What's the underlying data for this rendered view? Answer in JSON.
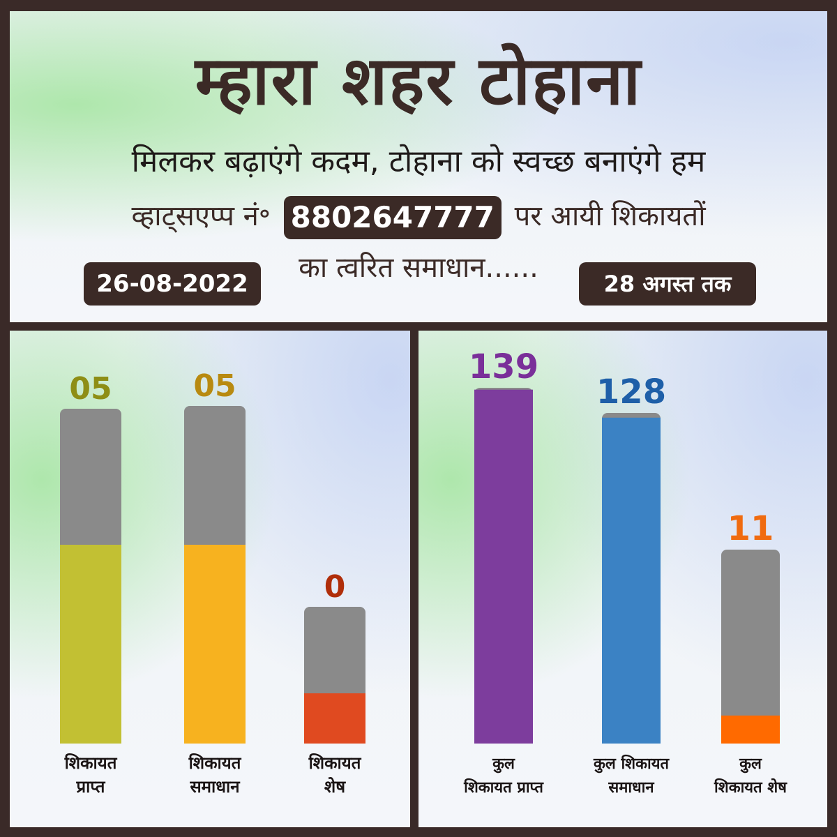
{
  "header": {
    "title": "म्हारा शहर टोहाना",
    "subtitle": "मिलकर बढ़ाएंगे कदम, टोहाना को स्वच्छ बनाएंगे हम",
    "whatsapp_prefix": "व्हाट्सएप्प नं॰",
    "phone": "8802647777",
    "whatsapp_suffix": "पर आयी शिकायतों",
    "line4": "का त्वरित समाधान......",
    "date": "26-08-2022",
    "upto": "28 अगस्त तक"
  },
  "colors": {
    "frame": "#3a2a28",
    "empty_bar": "#8a8a8a",
    "daily_received": "#c2c033",
    "daily_resolved": "#f7b21f",
    "daily_pending": "#e04a20",
    "total_received": "#7d3d9d",
    "total_resolved": "#3b82c4",
    "total_pending": "#ff6a00"
  },
  "chart_data": [
    {
      "type": "bar",
      "categories": [
        "शिकायत प्राप्त",
        "शिकायत समाधान",
        "शिकायत शेष"
      ],
      "category_lines": [
        [
          "शिकायत",
          "प्राप्त"
        ],
        [
          "शिकायत",
          "समाधान"
        ],
        [
          "शिकायत",
          "शेष"
        ]
      ],
      "value_labels": [
        "05",
        "05",
        "0"
      ],
      "values": [
        5,
        5,
        0
      ],
      "value_label_colors": [
        "#8e8e15",
        "#b88a10",
        "#b02e0a"
      ],
      "bar_colors": [
        "#c2c033",
        "#f7b21f",
        "#e04a20"
      ]
    },
    {
      "type": "bar",
      "categories": [
        "कुल शिकायत प्राप्त",
        "कुल शिकायत समाधान",
        "कुल शिकायत शेष"
      ],
      "category_lines": [
        [
          "कुल",
          "शिकायत प्राप्त"
        ],
        [
          "कुल शिकायत",
          "समाधान"
        ],
        [
          "कुल",
          "शिकायत शेष"
        ]
      ],
      "value_labels": [
        "139",
        "128",
        "11"
      ],
      "values": [
        139,
        128,
        11
      ],
      "value_label_colors": [
        "#7a2f99",
        "#1e5fa8",
        "#f06b10"
      ],
      "bar_colors": [
        "#7d3d9d",
        "#3b82c4",
        "#ff6a00"
      ]
    }
  ]
}
